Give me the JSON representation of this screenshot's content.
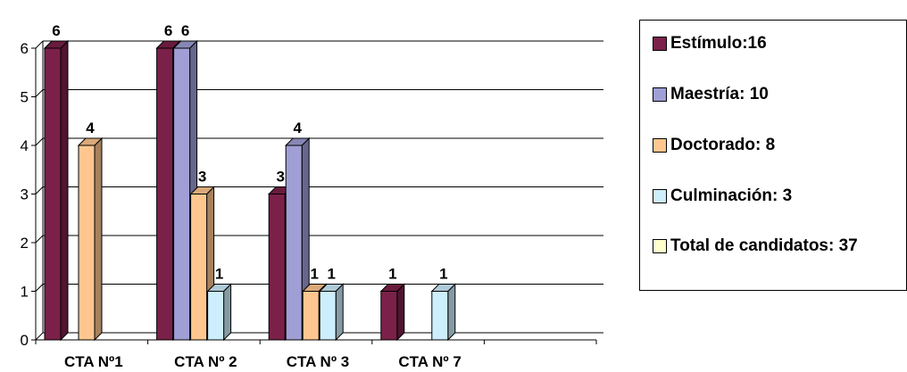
{
  "chart_data": {
    "type": "bar",
    "title": "",
    "xlabel": "",
    "ylabel": "",
    "ylim": [
      0,
      6
    ],
    "yticks": [
      "0",
      "1",
      "2",
      "3",
      "4",
      "5",
      "6"
    ],
    "grid": true,
    "legend_position": "right",
    "categories": [
      "CTA Nº1",
      "CTA Nº 2",
      "CTA Nº 3",
      "CTA Nº 7"
    ],
    "series": [
      {
        "name": "Estímulo:16",
        "color": "#7b2149",
        "values": [
          6,
          6,
          3,
          1
        ]
      },
      {
        "name": "Maestría: 10",
        "color": "#9f9fd6",
        "values": [
          0,
          6,
          4,
          0
        ]
      },
      {
        "name": "Doctorado: 8",
        "color": "#ffc78f",
        "values": [
          4,
          3,
          1,
          0
        ]
      },
      {
        "name": "Culminación: 3",
        "color": "#cdeefc",
        "values": [
          0,
          1,
          1,
          1
        ]
      },
      {
        "name": "Total de candidatos: 37",
        "color": "#ffffcc",
        "values": [
          0,
          0,
          0,
          0
        ]
      }
    ]
  }
}
